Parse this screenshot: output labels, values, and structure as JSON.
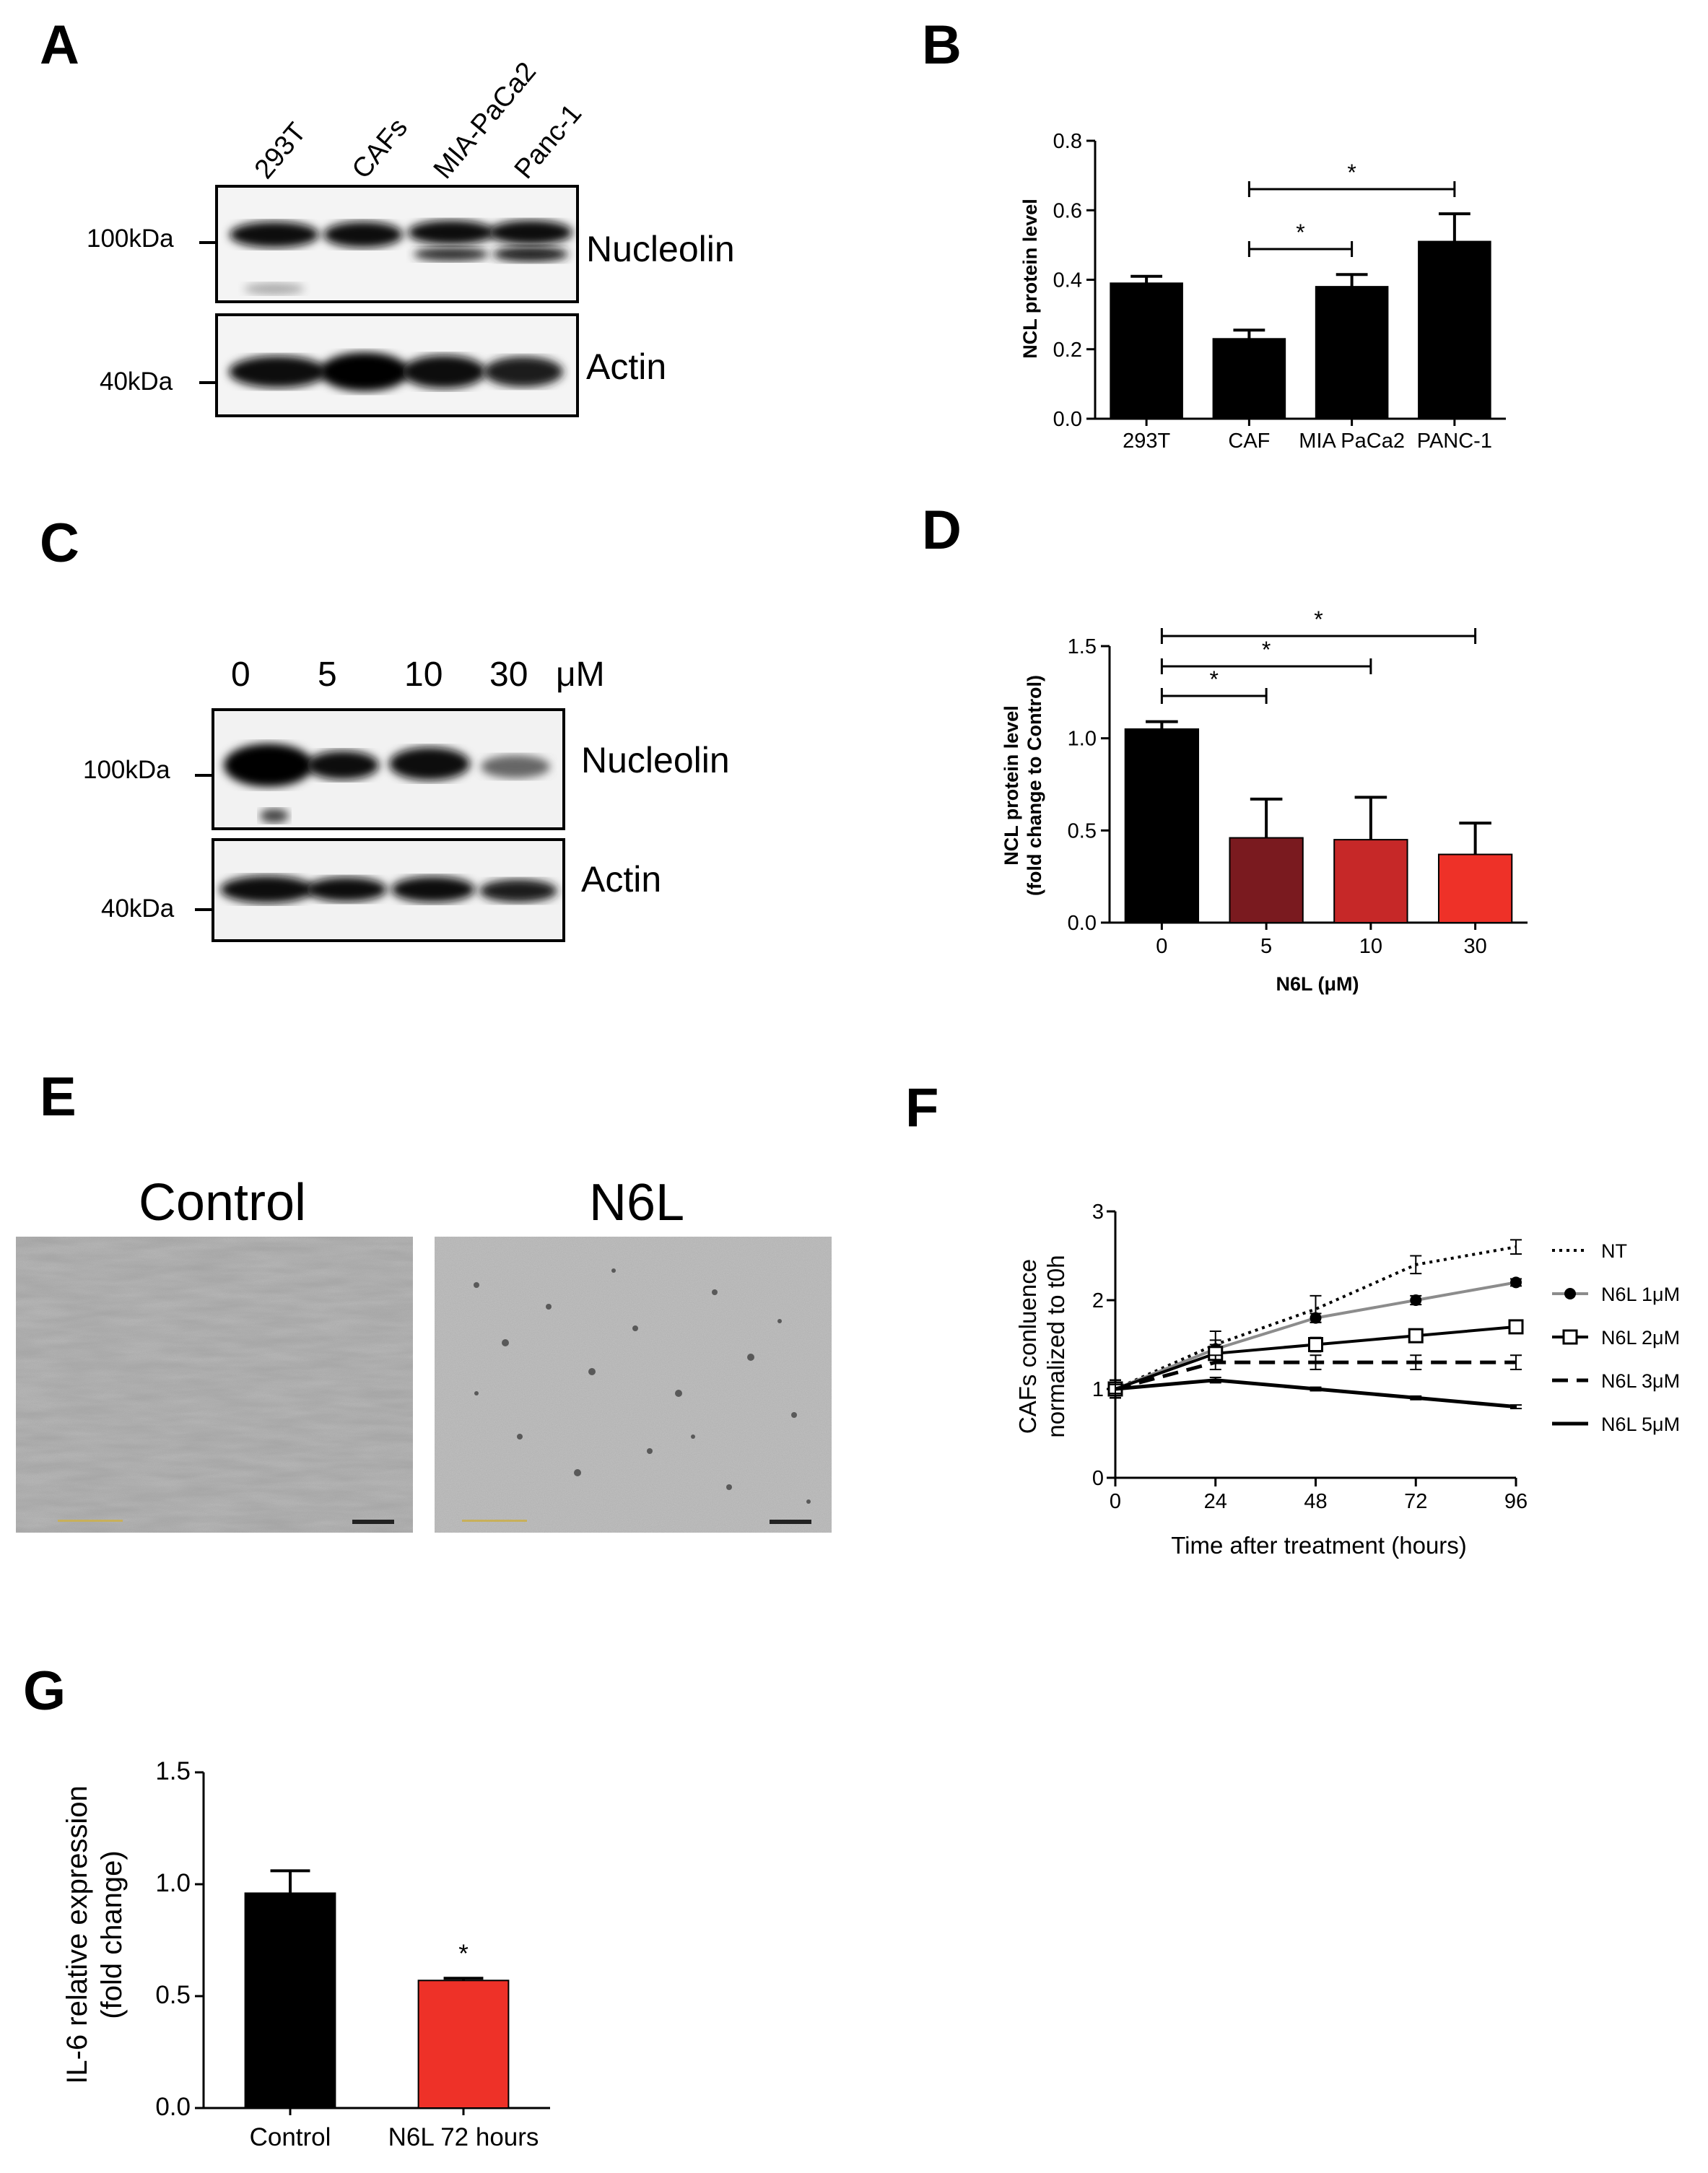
{
  "panels": {
    "A": {
      "letter": "A",
      "lanes": [
        "293T",
        "CAFs",
        "MIA-PaCa2",
        "Panc-1"
      ],
      "blots": [
        {
          "name": "Nucleolin",
          "marker": "100kDa"
        },
        {
          "name": "Actin",
          "marker": "40kDa"
        }
      ]
    },
    "B": {
      "letter": "B",
      "significance": [
        {
          "from": "CAF",
          "to": "MIA PaCa2",
          "label": "*"
        },
        {
          "from": "CAF",
          "to": "PANC-1",
          "label": "*"
        }
      ]
    },
    "C": {
      "letter": "C",
      "doses": [
        "0",
        "5",
        "10",
        "30"
      ],
      "unit": "μM",
      "blots": [
        {
          "name": "Nucleolin",
          "marker": "100kDa"
        },
        {
          "name": "Actin",
          "marker": "40kDa"
        }
      ]
    },
    "D": {
      "letter": "D",
      "bar_colors": [
        "#000000",
        "#7a1a1f",
        "#c62828",
        "#ee3128"
      ],
      "significance": [
        {
          "from": "0",
          "to": "5",
          "label": "*"
        },
        {
          "from": "0",
          "to": "10",
          "label": "*"
        },
        {
          "from": "0",
          "to": "30",
          "label": "*"
        }
      ]
    },
    "E": {
      "letter": "E",
      "images": [
        {
          "title": "Control"
        },
        {
          "title": "N6L"
        }
      ]
    },
    "F": {
      "letter": "F"
    },
    "G": {
      "letter": "G",
      "bar_colors": [
        "#000000",
        "#ee3128"
      ],
      "significance_label": "*"
    }
  },
  "chart_data": [
    {
      "panel": "B",
      "type": "bar",
      "categories": [
        "293T",
        "CAF",
        "MIA PaCa2",
        "PANC-1"
      ],
      "values": [
        0.39,
        0.23,
        0.38,
        0.51
      ],
      "errors": [
        0.02,
        0.025,
        0.035,
        0.08
      ],
      "ylabel": "NCL protein level",
      "xlabel": "",
      "ylim": [
        0,
        0.8
      ],
      "yticks": [
        "0.0",
        "0.2",
        "0.4",
        "0.6",
        "0.8"
      ],
      "grid": false
    },
    {
      "panel": "D",
      "type": "bar",
      "categories": [
        "0",
        "5",
        "10",
        "30"
      ],
      "values": [
        1.05,
        0.46,
        0.45,
        0.37
      ],
      "errors": [
        0.04,
        0.21,
        0.23,
        0.17
      ],
      "ylabel": "NCL protein level (fold change to Control)",
      "ylabel_lines": [
        "NCL protein level",
        "(fold change to Control)"
      ],
      "xlabel": "N6L (μM)",
      "ylim": [
        0,
        1.5
      ],
      "yticks": [
        "0.0",
        "0.5",
        "1.0",
        "1.5"
      ],
      "grid": false
    },
    {
      "panel": "F",
      "type": "line",
      "x": [
        0,
        24,
        48,
        72,
        96
      ],
      "xticks": [
        "0",
        "24",
        "48",
        "72",
        "96"
      ],
      "xlabel": "Time after treatment (hours)",
      "ylabel": "CAFs conluence normalized to t0h",
      "ylabel_lines": [
        "CAFs conluence",
        "normalized to t0h"
      ],
      "ylim": [
        0,
        3
      ],
      "xlim": [
        0,
        96
      ],
      "yticks": [
        "0",
        "1",
        "2",
        "3"
      ],
      "legend": "right",
      "series": [
        {
          "name": "NT",
          "values": [
            1.0,
            1.5,
            1.9,
            2.4,
            2.6
          ],
          "errors": [
            0.1,
            0.15,
            0.15,
            0.1,
            0.08
          ],
          "color": "#000000",
          "dash": "dotted",
          "marker": "none"
        },
        {
          "name": "N6L 1μM",
          "values": [
            1.0,
            1.45,
            1.8,
            2.0,
            2.2
          ],
          "errors": [
            0.1,
            0.1,
            0.05,
            0.05,
            0.04
          ],
          "color": "#8c8c8c",
          "dash": "solid",
          "marker": "filled-circle"
        },
        {
          "name": "N6L 2μM",
          "values": [
            1.0,
            1.4,
            1.5,
            1.6,
            1.7
          ],
          "errors": [
            0.1,
            0.1,
            0.08,
            0.06,
            0.06
          ],
          "color": "#000000",
          "dash": "solid",
          "marker": "open-square"
        },
        {
          "name": "N6L 3μM",
          "values": [
            1.0,
            1.3,
            1.3,
            1.3,
            1.3
          ],
          "errors": [
            0.1,
            0.08,
            0.08,
            0.08,
            0.08
          ],
          "color": "#000000",
          "dash": "dashed",
          "marker": "none"
        },
        {
          "name": "N6L 5μM",
          "values": [
            1.0,
            1.1,
            1.0,
            0.9,
            0.8
          ],
          "errors": [
            0.05,
            0.03,
            0.02,
            0.02,
            0.02
          ],
          "color": "#000000",
          "dash": "solid-thick",
          "marker": "none"
        }
      ]
    },
    {
      "panel": "G",
      "type": "bar",
      "categories": [
        "Control",
        "N6L 72 hours"
      ],
      "values": [
        0.96,
        0.57
      ],
      "errors": [
        0.1,
        0.01
      ],
      "ylabel": "IL-6 relative expression (fold change)",
      "ylabel_lines": [
        "IL-6 relative expression",
        "(fold change)"
      ],
      "xlabel": "",
      "ylim": [
        0,
        1.5
      ],
      "yticks": [
        "0.0",
        "0.5",
        "1.0",
        "1.5"
      ],
      "grid": false
    }
  ]
}
